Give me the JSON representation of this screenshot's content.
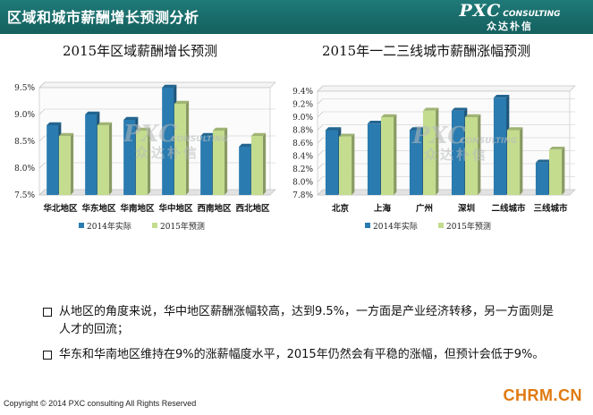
{
  "header": {
    "title": "区域和城市薪酬增长预测分析",
    "logo_main": "PXC",
    "logo_sub": "CONSULTING",
    "logo_cn": "众达朴信",
    "bar_color": "#1a6e6c"
  },
  "watermark": {
    "main": "PXC",
    "sub": "CONSULTING",
    "cn": "众达朴信"
  },
  "chart_data": [
    {
      "type": "bar",
      "title": "2015年区域薪酬增长预测",
      "categories": [
        "华北地区",
        "华东地区",
        "华南地区",
        "华中地区",
        "西南地区",
        "西北地区"
      ],
      "series": [
        {
          "name": "2014年实际",
          "values": [
            8.8,
            9.0,
            8.9,
            9.5,
            8.6,
            8.4
          ],
          "color": "#2a7bb0"
        },
        {
          "name": "2015年预测",
          "values": [
            8.6,
            8.8,
            8.7,
            9.2,
            8.7,
            8.6
          ],
          "color": "#c3dc8e"
        }
      ],
      "ylim": [
        7.5,
        9.5
      ],
      "yticks": [
        "7.5%",
        "8.0%",
        "8.5%",
        "9.0%",
        "9.5%"
      ],
      "legend": "bottom"
    },
    {
      "type": "bar",
      "title": "2015年一二三线城市薪酬涨幅预测",
      "categories": [
        "北京",
        "上海",
        "广州",
        "深圳",
        "二线城市",
        "三线城市"
      ],
      "series": [
        {
          "name": "2014年实际",
          "values": [
            8.8,
            8.9,
            8.8,
            9.1,
            9.3,
            8.3
          ],
          "color": "#2a7bb0"
        },
        {
          "name": "2015年预测",
          "values": [
            8.7,
            9.0,
            9.1,
            9.0,
            8.8,
            8.5
          ],
          "color": "#c3dc8e"
        }
      ],
      "ylim": [
        7.8,
        9.4
      ],
      "yticks": [
        "7.8%",
        "8.0%",
        "8.2%",
        "8.4%",
        "8.6%",
        "8.8%",
        "9.0%",
        "9.2%",
        "9.4%"
      ],
      "legend": "bottom"
    }
  ],
  "notes": [
    "从地区的角度来说，华中地区薪酬涨幅较高，达到9.5%，一方面是产业经济转移，另一方面则是人才的回流；",
    "华东和华南地区维持在9%的涨薪幅度水平，2015年仍然会有平稳的涨幅，但预计会低于9%。"
  ],
  "footer": "Copyright © 2014 PXC consulting All Rights Reserved",
  "corner_brand": "CHRM.CN"
}
